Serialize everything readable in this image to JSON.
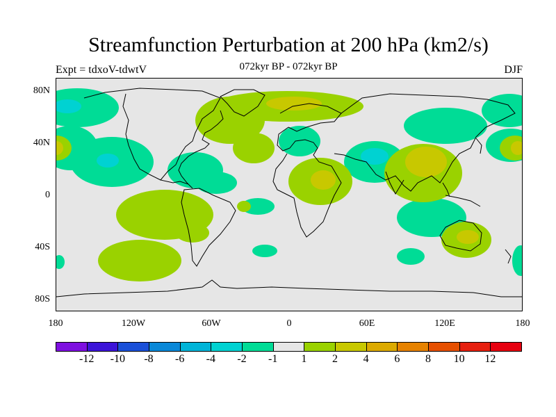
{
  "header": {
    "title": "Streamfunction Perturbation at 200 hPa (km2/s)",
    "subtitle": "072kyr BP - 072kyr BP",
    "experiment": "Expt = tdxoV-tdwtV",
    "season": "DJF"
  },
  "map": {
    "lat_labels": [
      "80N",
      "40N",
      "0",
      "40S",
      "80S"
    ],
    "lon_labels": [
      "180",
      "120W",
      "60W",
      "0",
      "60E",
      "120E",
      "180"
    ],
    "background_color": "#e6e6e6"
  },
  "colorbar": {
    "labels": [
      "-12",
      "-10",
      "-8",
      "-6",
      "-4",
      "-2",
      "-1",
      "1",
      "2",
      "4",
      "6",
      "8",
      "10",
      "12"
    ],
    "colors": [
      "#7e10e0",
      "#3c14d8",
      "#1a50d8",
      "#0a88d8",
      "#00b4d8",
      "#00d2d2",
      "#00dc96",
      "#e6e6e6",
      "#9ad200",
      "#c8c800",
      "#dcaa00",
      "#e68200",
      "#e65000",
      "#e62010",
      "#e60010"
    ]
  },
  "contour_colors": {
    "pos_light": "#9ad200",
    "pos_mid": "#c8c800",
    "neg_light": "#00dc96",
    "neg_mid": "#00d2d2"
  }
}
